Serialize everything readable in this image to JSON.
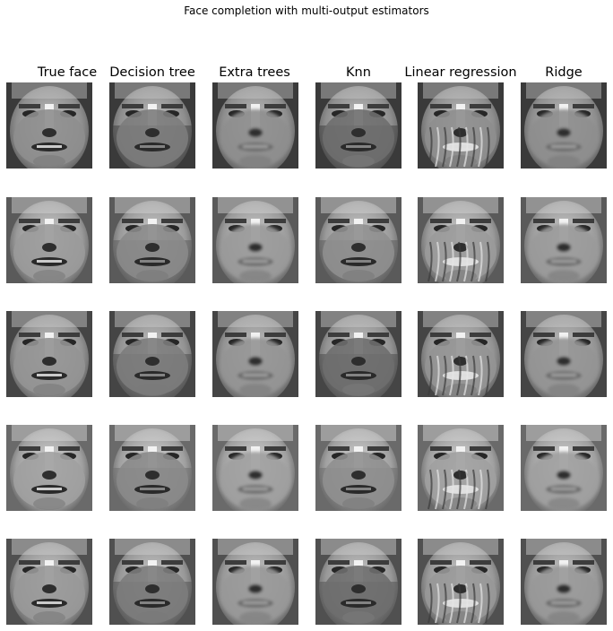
{
  "figure": {
    "title": "Face completion with multi-output estimators"
  },
  "columns": [
    {
      "id": "true-face",
      "label": "True face"
    },
    {
      "id": "decision-tree",
      "label": "Decision tree"
    },
    {
      "id": "extra-trees",
      "label": "Extra trees"
    },
    {
      "id": "knn",
      "label": "Knn"
    },
    {
      "id": "linear-regression",
      "label": "Linear regression"
    },
    {
      "id": "ridge",
      "label": "Ridge"
    }
  ],
  "rows": 5,
  "colormap": "gray"
}
